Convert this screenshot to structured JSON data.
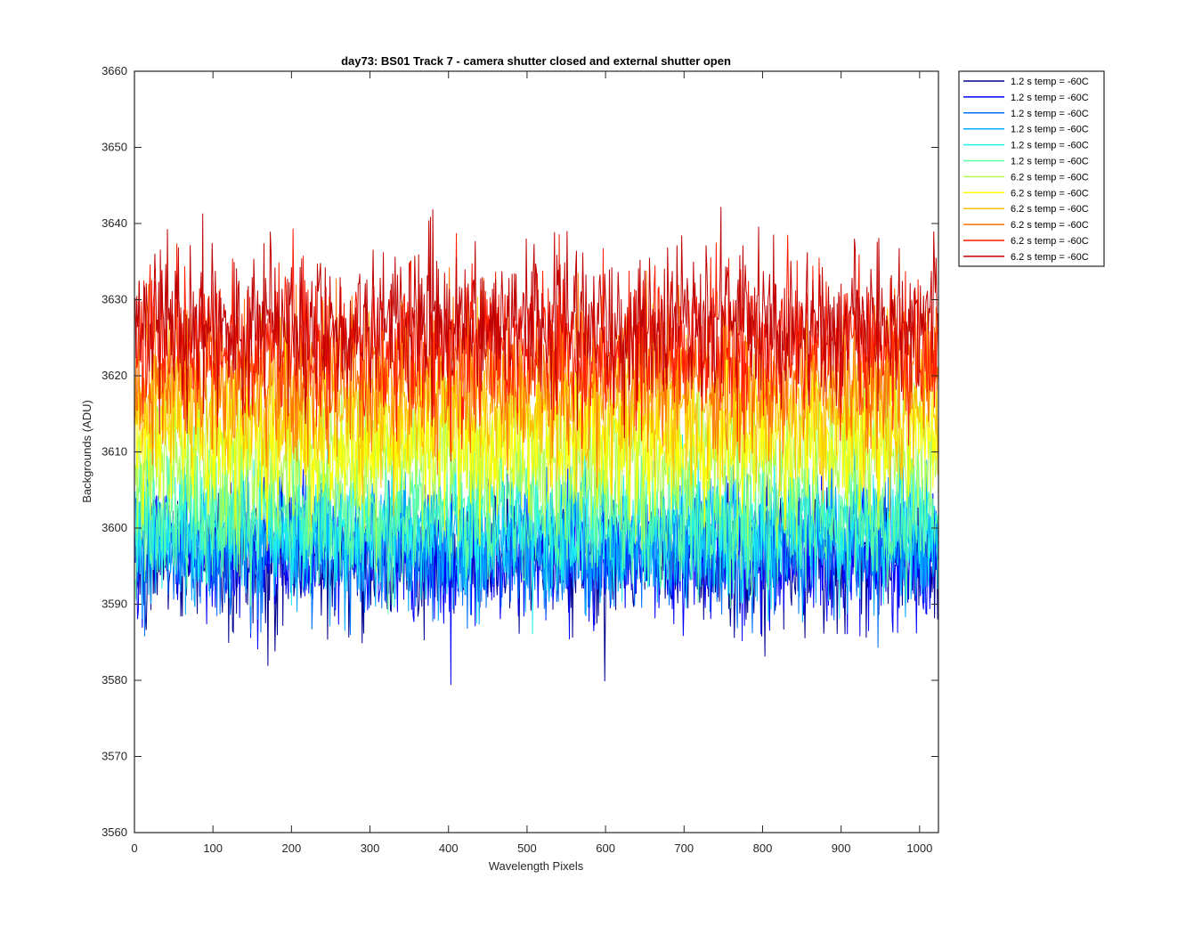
{
  "chart_data": {
    "type": "line",
    "title": "day73: BS01  Track 7 - camera shutter closed and external shutter open",
    "xlabel": "Wavelength Pixels",
    "ylabel": "Backgrounds (ADU)",
    "xlim": [
      0,
      1024
    ],
    "ylim": [
      3560,
      3660
    ],
    "xticks": [
      0,
      100,
      200,
      300,
      400,
      500,
      600,
      700,
      800,
      900,
      1000
    ],
    "yticks": [
      3560,
      3570,
      3580,
      3590,
      3600,
      3610,
      3620,
      3630,
      3640,
      3650,
      3660
    ],
    "grid": false,
    "legend_position": "outside-top-right",
    "x": {
      "start": 1,
      "end": 1024,
      "step": 1
    },
    "series": [
      {
        "name": "1.2 s temp = -60C",
        "color": "#00008f",
        "mean": 3596.0,
        "noise_sd": 4.2
      },
      {
        "name": "1.2 s temp = -60C",
        "color": "#0000ff",
        "mean": 3596.5,
        "noise_sd": 4.2
      },
      {
        "name": "1.2 s temp = -60C",
        "color": "#0070ff",
        "mean": 3597.5,
        "noise_sd": 4.2
      },
      {
        "name": "1.2 s temp = -60C",
        "color": "#00a8ff",
        "mean": 3598.5,
        "noise_sd": 4.2
      },
      {
        "name": "1.2 s temp = -60C",
        "color": "#1ff0f0",
        "mean": 3600.0,
        "noise_sd": 4.2
      },
      {
        "name": "1.2 s temp = -60C",
        "color": "#5fffa0",
        "mean": 3601.5,
        "noise_sd": 4.2
      },
      {
        "name": "6.2 s temp = -60C",
        "color": "#b0ff4f",
        "mean": 3609.0,
        "noise_sd": 4.8
      },
      {
        "name": "6.2 s temp = -60C",
        "color": "#ffff00",
        "mean": 3612.0,
        "noise_sd": 4.8
      },
      {
        "name": "6.2 s temp = -60C",
        "color": "#ffc000",
        "mean": 3616.0,
        "noise_sd": 4.8
      },
      {
        "name": "6.2 s temp = -60C",
        "color": "#ff7000",
        "mean": 3620.0,
        "noise_sd": 4.8
      },
      {
        "name": "6.2 s temp = -60C",
        "color": "#ff1a00",
        "mean": 3624.0,
        "noise_sd": 4.8
      },
      {
        "name": "6.2 s temp = -60C",
        "color": "#c00000",
        "mean": 3627.0,
        "noise_sd": 5.0
      }
    ]
  }
}
